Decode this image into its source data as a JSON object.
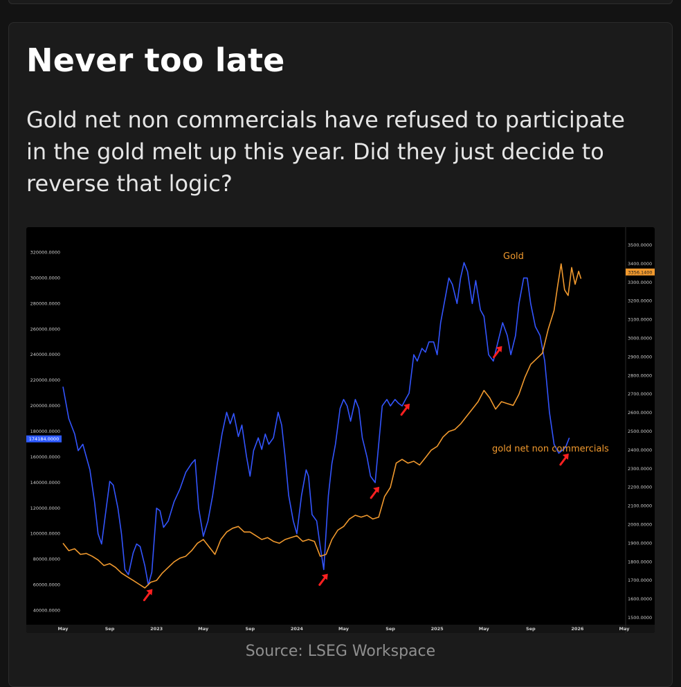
{
  "card": {
    "title": "Never too late",
    "subtitle": "Gold net non commercials have refused to participate in the gold melt up this year. Did they just decide to reverse that logic?",
    "source": "Source: LSEG Workspace"
  },
  "chart_data": {
    "type": "line",
    "x_tick_labels": [
      "May",
      "Sep",
      "2023",
      "May",
      "Sep",
      "2024",
      "May",
      "Sep",
      "2025",
      "May",
      "Sep",
      "2026",
      "May"
    ],
    "x_start_month": 0,
    "x_end_month": 48,
    "series": [
      {
        "name": "gold net non commercials",
        "axis": "left",
        "color": "#3355ff",
        "points": [
          [
            0.0,
            215000
          ],
          [
            0.5,
            190000
          ],
          [
            1.0,
            178000
          ],
          [
            1.3,
            165000
          ],
          [
            1.7,
            170000
          ],
          [
            2.0,
            160000
          ],
          [
            2.3,
            150000
          ],
          [
            2.7,
            125000
          ],
          [
            3.0,
            100000
          ],
          [
            3.3,
            92000
          ],
          [
            3.7,
            120000
          ],
          [
            4.0,
            141000
          ],
          [
            4.3,
            138000
          ],
          [
            4.7,
            120000
          ],
          [
            5.0,
            100000
          ],
          [
            5.3,
            72000
          ],
          [
            5.6,
            68000
          ],
          [
            6.0,
            85000
          ],
          [
            6.3,
            92000
          ],
          [
            6.6,
            90000
          ],
          [
            7.0,
            75000
          ],
          [
            7.3,
            60000
          ],
          [
            7.6,
            70000
          ],
          [
            8.0,
            120000
          ],
          [
            8.3,
            118000
          ],
          [
            8.6,
            105000
          ],
          [
            9.0,
            110000
          ],
          [
            9.5,
            125000
          ],
          [
            10.0,
            135000
          ],
          [
            10.5,
            148000
          ],
          [
            11.0,
            155000
          ],
          [
            11.3,
            158000
          ],
          [
            11.6,
            120000
          ],
          [
            12.0,
            98000
          ],
          [
            12.4,
            110000
          ],
          [
            12.8,
            130000
          ],
          [
            13.2,
            155000
          ],
          [
            13.6,
            178000
          ],
          [
            14.0,
            195000
          ],
          [
            14.3,
            186000
          ],
          [
            14.6,
            194000
          ],
          [
            15.0,
            176000
          ],
          [
            15.3,
            185000
          ],
          [
            15.7,
            160000
          ],
          [
            16.0,
            145000
          ],
          [
            16.3,
            165000
          ],
          [
            16.7,
            175000
          ],
          [
            17.0,
            166000
          ],
          [
            17.3,
            178000
          ],
          [
            17.6,
            170000
          ],
          [
            18.0,
            175000
          ],
          [
            18.4,
            195000
          ],
          [
            18.7,
            185000
          ],
          [
            19.0,
            160000
          ],
          [
            19.3,
            130000
          ],
          [
            19.7,
            110000
          ],
          [
            20.0,
            100000
          ],
          [
            20.4,
            130000
          ],
          [
            20.8,
            150000
          ],
          [
            21.0,
            145000
          ],
          [
            21.3,
            115000
          ],
          [
            21.7,
            110000
          ],
          [
            22.0,
            90000
          ],
          [
            22.3,
            72000
          ],
          [
            22.7,
            130000
          ],
          [
            23.0,
            155000
          ],
          [
            23.3,
            170000
          ],
          [
            23.7,
            198000
          ],
          [
            24.0,
            205000
          ],
          [
            24.3,
            200000
          ],
          [
            24.6,
            188000
          ],
          [
            25.0,
            205000
          ],
          [
            25.3,
            198000
          ],
          [
            25.6,
            175000
          ],
          [
            26.0,
            160000
          ],
          [
            26.3,
            145000
          ],
          [
            26.7,
            140000
          ],
          [
            27.0,
            170000
          ],
          [
            27.3,
            200000
          ],
          [
            27.7,
            205000
          ],
          [
            28.0,
            200000
          ],
          [
            28.4,
            205000
          ],
          [
            28.7,
            202000
          ],
          [
            29.0,
            200000
          ],
          [
            29.3,
            205000
          ],
          [
            29.6,
            210000
          ],
          [
            30.0,
            240000
          ],
          [
            30.3,
            235000
          ],
          [
            30.7,
            245000
          ],
          [
            31.0,
            242000
          ],
          [
            31.3,
            250000
          ],
          [
            31.7,
            250000
          ],
          [
            32.0,
            240000
          ],
          [
            32.3,
            265000
          ],
          [
            32.7,
            285000
          ],
          [
            33.0,
            300000
          ],
          [
            33.3,
            295000
          ],
          [
            33.7,
            280000
          ],
          [
            34.0,
            300000
          ],
          [
            34.3,
            312000
          ],
          [
            34.6,
            305000
          ],
          [
            35.0,
            280000
          ],
          [
            35.3,
            298000
          ],
          [
            35.7,
            275000
          ],
          [
            36.0,
            270000
          ],
          [
            36.4,
            240000
          ],
          [
            36.8,
            235000
          ],
          [
            37.2,
            250000
          ],
          [
            37.6,
            265000
          ],
          [
            38.0,
            255000
          ],
          [
            38.3,
            240000
          ],
          [
            38.7,
            255000
          ],
          [
            39.0,
            280000
          ],
          [
            39.4,
            300000
          ],
          [
            39.7,
            300000
          ],
          [
            40.0,
            280000
          ],
          [
            40.4,
            262000
          ],
          [
            40.8,
            255000
          ],
          [
            41.2,
            235000
          ],
          [
            41.6,
            195000
          ],
          [
            42.0,
            170000
          ],
          [
            42.4,
            163000
          ],
          [
            42.8,
            166000
          ],
          [
            43.0,
            168000
          ],
          [
            43.3,
            175000
          ]
        ]
      },
      {
        "name": "Gold",
        "axis": "right",
        "color": "#f29a2e",
        "points": [
          [
            0.0,
            1900
          ],
          [
            0.5,
            1860
          ],
          [
            1.0,
            1870
          ],
          [
            1.5,
            1840
          ],
          [
            2.0,
            1845
          ],
          [
            2.5,
            1830
          ],
          [
            3.0,
            1810
          ],
          [
            3.5,
            1780
          ],
          [
            4.0,
            1790
          ],
          [
            4.5,
            1770
          ],
          [
            5.0,
            1740
          ],
          [
            5.5,
            1720
          ],
          [
            6.0,
            1700
          ],
          [
            6.5,
            1680
          ],
          [
            7.0,
            1660
          ],
          [
            7.5,
            1690
          ],
          [
            8.0,
            1700
          ],
          [
            8.5,
            1740
          ],
          [
            9.0,
            1770
          ],
          [
            9.5,
            1800
          ],
          [
            10.0,
            1820
          ],
          [
            10.5,
            1830
          ],
          [
            11.0,
            1860
          ],
          [
            11.5,
            1900
          ],
          [
            12.0,
            1920
          ],
          [
            12.5,
            1880
          ],
          [
            13.0,
            1840
          ],
          [
            13.5,
            1920
          ],
          [
            14.0,
            1960
          ],
          [
            14.5,
            1980
          ],
          [
            15.0,
            1990
          ],
          [
            15.5,
            1960
          ],
          [
            16.0,
            1960
          ],
          [
            16.5,
            1940
          ],
          [
            17.0,
            1920
          ],
          [
            17.5,
            1930
          ],
          [
            18.0,
            1910
          ],
          [
            18.5,
            1900
          ],
          [
            19.0,
            1920
          ],
          [
            19.5,
            1930
          ],
          [
            20.0,
            1940
          ],
          [
            20.5,
            1910
          ],
          [
            21.0,
            1920
          ],
          [
            21.5,
            1910
          ],
          [
            22.0,
            1830
          ],
          [
            22.5,
            1840
          ],
          [
            23.0,
            1920
          ],
          [
            23.5,
            1970
          ],
          [
            24.0,
            1990
          ],
          [
            24.5,
            2030
          ],
          [
            25.0,
            2050
          ],
          [
            25.5,
            2040
          ],
          [
            26.0,
            2050
          ],
          [
            26.5,
            2030
          ],
          [
            27.0,
            2040
          ],
          [
            27.5,
            2150
          ],
          [
            28.0,
            2200
          ],
          [
            28.5,
            2330
          ],
          [
            29.0,
            2350
          ],
          [
            29.5,
            2330
          ],
          [
            30.0,
            2340
          ],
          [
            30.5,
            2320
          ],
          [
            31.0,
            2360
          ],
          [
            31.5,
            2400
          ],
          [
            32.0,
            2420
          ],
          [
            32.5,
            2470
          ],
          [
            33.0,
            2500
          ],
          [
            33.5,
            2510
          ],
          [
            34.0,
            2540
          ],
          [
            34.5,
            2580
          ],
          [
            35.0,
            2620
          ],
          [
            35.5,
            2660
          ],
          [
            36.0,
            2720
          ],
          [
            36.5,
            2680
          ],
          [
            37.0,
            2620
          ],
          [
            37.5,
            2660
          ],
          [
            38.0,
            2650
          ],
          [
            38.5,
            2640
          ],
          [
            39.0,
            2700
          ],
          [
            39.5,
            2790
          ],
          [
            40.0,
            2860
          ],
          [
            40.5,
            2890
          ],
          [
            41.0,
            2920
          ],
          [
            41.5,
            3050
          ],
          [
            42.0,
            3150
          ],
          [
            42.3,
            3280
          ],
          [
            42.6,
            3400
          ],
          [
            42.9,
            3260
          ],
          [
            43.2,
            3230
          ],
          [
            43.5,
            3380
          ],
          [
            43.8,
            3290
          ],
          [
            44.1,
            3360
          ],
          [
            44.3,
            3320
          ]
        ]
      }
    ],
    "y_left": {
      "ylim": [
        30000,
        330000
      ],
      "ticks": [
        40000,
        60000,
        80000,
        100000,
        120000,
        140000,
        160000,
        180000,
        200000,
        220000,
        240000,
        260000,
        280000,
        300000,
        320000
      ],
      "tick_labels": [
        "40000.0000",
        "60000.0000",
        "80000.0000",
        "100000.0000",
        "120000.0000",
        "140000.0000",
        "160000.0000",
        "180000.0000",
        "200000.0000",
        "220000.0000",
        "240000.0000",
        "260000.0000",
        "280000.0000",
        "300000.0000",
        "320000.0000"
      ],
      "last_value_label": "174184.0000"
    },
    "y_right": {
      "ylim": [
        1470,
        3530
      ],
      "ticks": [
        1500,
        1600,
        1700,
        1800,
        1900,
        2000,
        2100,
        2200,
        2300,
        2400,
        2500,
        2600,
        2700,
        2800,
        2900,
        3000,
        3100,
        3200,
        3300,
        3400,
        3500
      ],
      "tick_labels": [
        "1500.0000",
        "1600.0000",
        "1700.0000",
        "1800.0000",
        "1900.0000",
        "2000.0000",
        "2100.0000",
        "2200.0000",
        "2300.0000",
        "2400.0000",
        "2500.0000",
        "2600.0000",
        "2700.0000",
        "2800.0000",
        "2900.0000",
        "3000.0000",
        "3100.0000",
        "3200.0000",
        "3300.0000",
        "3400.0000",
        "3500.0000"
      ],
      "last_value_label": "3356.1400"
    },
    "annotations": [
      {
        "text": "Gold",
        "color": "#f29a2e"
      },
      {
        "text": "gold net non commercials",
        "color": "#f29a2e"
      }
    ],
    "arrow_markers": [
      {
        "x": 7.3,
        "series": "gold net non commercials"
      },
      {
        "x": 22.3,
        "series": "gold net non commercials"
      },
      {
        "x": 26.7,
        "series": "gold net non commercials"
      },
      {
        "x": 29.3,
        "series": "gold net non commercials"
      },
      {
        "x": 37.2,
        "series": "gold net non commercials"
      },
      {
        "x": 42.9,
        "series": "gold net non commercials"
      }
    ],
    "arrow_color": "#ff2020",
    "grid": false
  }
}
